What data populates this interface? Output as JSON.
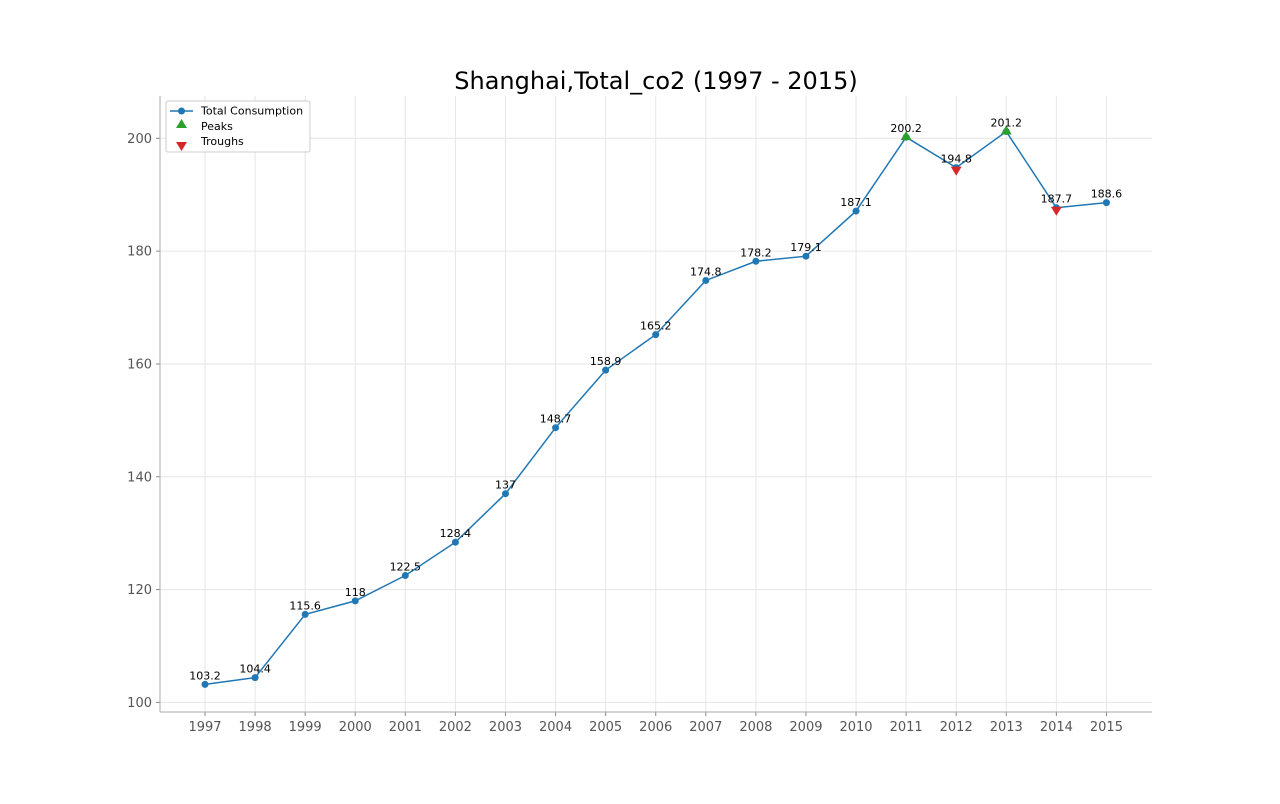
{
  "chart_data": {
    "type": "line",
    "title": "Shanghai,Total_co2 (1997 - 2015)",
    "xlabel": "",
    "ylabel": "",
    "x": [
      "1997",
      "1998",
      "1999",
      "2000",
      "2001",
      "2002",
      "2003",
      "2004",
      "2005",
      "2006",
      "2007",
      "2008",
      "2009",
      "2010",
      "2011",
      "2012",
      "2013",
      "2014",
      "2015"
    ],
    "series": [
      {
        "name": "Total Consumption",
        "values": [
          103.2,
          104.4,
          115.6,
          118,
          122.5,
          128.4,
          137,
          148.7,
          158.9,
          165.2,
          174.8,
          178.2,
          179.1,
          187.1,
          200.2,
          194.8,
          201.2,
          187.7,
          188.6
        ],
        "data_labels": [
          "103.2",
          "104.4",
          "115.6",
          "118",
          "122.5",
          "128.4",
          "137",
          "148.7",
          "158.9",
          "165.2",
          "174.8",
          "178.2",
          "179.1",
          "187.1",
          "200.2",
          "194.8",
          "201.2",
          "187.7",
          "188.6"
        ]
      }
    ],
    "peaks": {
      "name": "Peaks",
      "x": [
        "2011",
        "2013"
      ],
      "values": [
        200.2,
        201.2
      ]
    },
    "troughs": {
      "name": "Troughs",
      "x": [
        "2012",
        "2014"
      ],
      "values": [
        194.8,
        187.7
      ]
    },
    "yticks": [
      100,
      120,
      140,
      160,
      180,
      200
    ],
    "ylim": [
      98.3,
      207.5
    ],
    "grid": true,
    "legend_position": "top-left",
    "colors": {
      "line": "#1f77b4",
      "peaks": "#2ca02c",
      "troughs": "#d62728"
    }
  }
}
